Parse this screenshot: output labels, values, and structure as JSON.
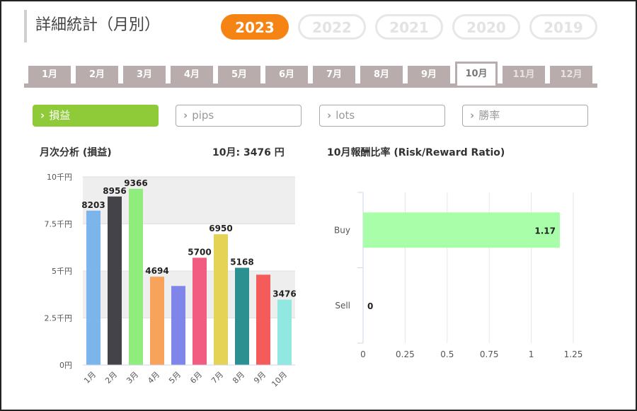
{
  "page_title": "詳細統計（月別）",
  "years": [
    {
      "label": "2023",
      "active": true
    },
    {
      "label": "2022",
      "active": false
    },
    {
      "label": "2021",
      "active": false
    },
    {
      "label": "2020",
      "active": false
    },
    {
      "label": "2019",
      "active": false
    }
  ],
  "months": [
    {
      "label": "1月",
      "state": "normal"
    },
    {
      "label": "2月",
      "state": "normal"
    },
    {
      "label": "3月",
      "state": "normal"
    },
    {
      "label": "4月",
      "state": "normal"
    },
    {
      "label": "5月",
      "state": "normal"
    },
    {
      "label": "6月",
      "state": "normal"
    },
    {
      "label": "7月",
      "state": "normal"
    },
    {
      "label": "8月",
      "state": "normal"
    },
    {
      "label": "9月",
      "state": "normal"
    },
    {
      "label": "10月",
      "state": "active"
    },
    {
      "label": "11月",
      "state": "future"
    },
    {
      "label": "12月",
      "state": "future"
    }
  ],
  "metrics": [
    {
      "label": "損益",
      "active": true
    },
    {
      "label": "pips",
      "active": false
    },
    {
      "label": "lots",
      "active": false
    },
    {
      "label": "勝率",
      "active": false
    }
  ],
  "left_panel": {
    "title": "月次分析 (損益)",
    "summary": "10月:  3476 円"
  },
  "right_panel": {
    "title": "10月報酬比率 (Risk/Reward Ratio)"
  },
  "colors": {
    "accent": "#f58414",
    "metric_active": "#8fcb38",
    "tab": "#b8acac"
  },
  "chart_data": [
    {
      "type": "bar",
      "categories": [
        "1月",
        "2月",
        "3月",
        "4月",
        "5月",
        "6月",
        "7月",
        "8月",
        "9月",
        "10月"
      ],
      "values": [
        8203,
        8956,
        9366,
        4694,
        4200,
        5700,
        6950,
        5168,
        4800,
        3476
      ],
      "data_labels": [
        "8203",
        "8956",
        "9366",
        "4694",
        "",
        "5700",
        "6950",
        "5168",
        "",
        "3476"
      ],
      "colors": [
        "#7cb5ec",
        "#434348",
        "#90ed7d",
        "#f7a35c",
        "#8085e9",
        "#f15c80",
        "#e4d354",
        "#2b908f",
        "#f45b5b",
        "#91e8e1"
      ],
      "ylim": [
        0,
        10000
      ],
      "yticks": [
        0,
        2500,
        5000,
        7500,
        10000
      ],
      "ytick_labels": [
        "0円",
        "2.5千円",
        "5千円",
        "7.5千円",
        "10千円"
      ],
      "grid": true,
      "legend": "none"
    },
    {
      "type": "bar",
      "orientation": "horizontal",
      "categories": [
        "Buy",
        "Sell"
      ],
      "values": [
        1.17,
        0
      ],
      "data_labels": [
        "1.17",
        "0"
      ],
      "colors": [
        "#a9ffa9",
        "#a9ffa9"
      ],
      "xlim": [
        0,
        1.25
      ],
      "xticks": [
        0,
        0.25,
        0.5,
        0.75,
        1,
        1.25
      ],
      "xtick_labels": [
        "0",
        "0.25",
        "0.5",
        "0.75",
        "1",
        "1.25"
      ],
      "grid": true,
      "legend": "none"
    }
  ]
}
